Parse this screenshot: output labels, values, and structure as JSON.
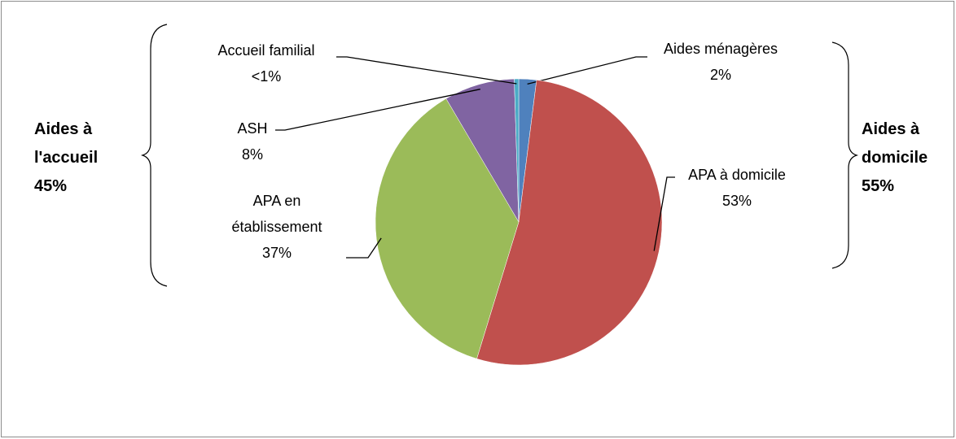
{
  "chart_data": {
    "type": "pie",
    "categories": [
      "Aides ménagères",
      "APA à domicile",
      "APA en établissement",
      "ASH",
      "Accueil familial"
    ],
    "values": [
      2,
      53,
      37,
      8,
      0.5
    ],
    "value_labels": [
      "2%",
      "53%",
      "37%",
      "8%",
      "<1%"
    ],
    "colors": [
      "#4f81bd",
      "#c0504d",
      "#9bbb59",
      "#8064a2",
      "#4bacc6"
    ],
    "annotations": [
      {
        "lines": [
          "Aides à",
          "l'accueil",
          "45%"
        ]
      },
      {
        "lines": [
          "Aides à",
          "domicile",
          "55%"
        ]
      }
    ]
  }
}
